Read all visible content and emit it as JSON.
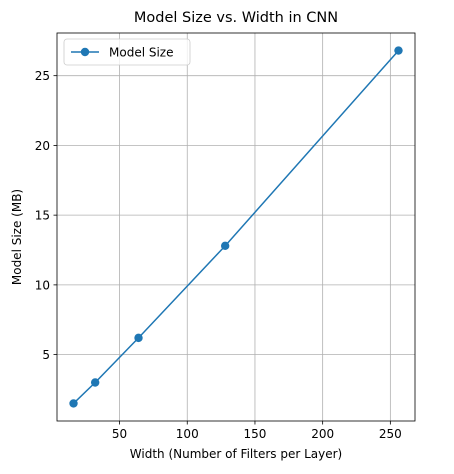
{
  "chart_data": {
    "type": "line",
    "title": "Model Size vs. Width in CNN",
    "xlabel": "Width (Number of Filters per Layer)",
    "ylabel": "Model Size (MB)",
    "xlim": [
      3.8,
      268.2
    ],
    "ylim": [
      0.24,
      28.06
    ],
    "xticks": [
      50,
      100,
      150,
      200,
      250
    ],
    "yticks": [
      5,
      10,
      15,
      20,
      25
    ],
    "grid": true,
    "legend_position": "top-left",
    "series": [
      {
        "name": "Model Size",
        "color": "#1f77b4",
        "marker": "circle",
        "x": [
          16,
          32,
          64,
          128,
          256
        ],
        "y": [
          1.5,
          3.0,
          6.2,
          12.8,
          26.8
        ]
      }
    ]
  }
}
